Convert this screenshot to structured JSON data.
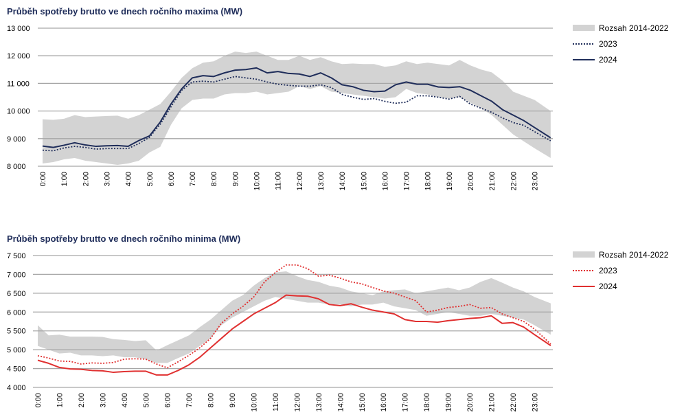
{
  "chart_data": [
    {
      "type": "line",
      "title": "Průběh spotřeby brutto ve dnech ročního maxima (MW)",
      "xlabel": "",
      "ylabel": "",
      "ylim": [
        8000,
        13000
      ],
      "yticks": [
        8000,
        9000,
        10000,
        11000,
        12000,
        13000
      ],
      "ytick_labels": [
        "8 000",
        "9 000",
        "10 000",
        "11 000",
        "12 000",
        "13 000"
      ],
      "xtick_labels": [
        "0:00",
        "1:00",
        "2:00",
        "3:00",
        "4:00",
        "5:00",
        "6:00",
        "7:00",
        "8:00",
        "9:00",
        "10:00",
        "11:00",
        "12:00",
        "13:00",
        "14:00",
        "15:00",
        "16:00",
        "17:00",
        "18:00",
        "19:00",
        "20:00",
        "21:00",
        "22:00",
        "23:00"
      ],
      "x_hours": [
        0,
        0.5,
        1,
        1.5,
        2,
        2.5,
        3,
        3.5,
        4,
        4.5,
        5,
        5.5,
        6,
        6.5,
        7,
        7.5,
        8,
        8.5,
        9,
        9.5,
        10,
        10.5,
        11,
        11.5,
        12,
        12.5,
        13,
        13.5,
        14,
        14.5,
        15,
        15.5,
        16,
        16.5,
        17,
        17.5,
        18,
        18.5,
        19,
        19.5,
        20,
        20.5,
        21,
        21.5,
        22,
        22.5,
        23,
        23.75
      ],
      "grid": true,
      "legend_position": "right",
      "band": {
        "name": "Rozsah 2014-2022",
        "color": "#d3d3d3",
        "upper": [
          9700,
          9680,
          9720,
          9850,
          9780,
          9800,
          9820,
          9830,
          9720,
          9850,
          10050,
          10250,
          10700,
          11200,
          11550,
          11750,
          11800,
          12000,
          12150,
          12100,
          12150,
          12000,
          11850,
          11850,
          12000,
          11850,
          11950,
          11800,
          11700,
          11720,
          11700,
          11700,
          11600,
          11650,
          11800,
          11700,
          11750,
          11700,
          11650,
          11850,
          11650,
          11500,
          11400,
          11100,
          10700,
          10550,
          10400,
          10000
        ],
        "lower": [
          8100,
          8150,
          8250,
          8300,
          8200,
          8150,
          8100,
          8050,
          8100,
          8200,
          8500,
          8700,
          9500,
          10100,
          10400,
          10450,
          10450,
          10600,
          10650,
          10650,
          10700,
          10600,
          10650,
          10700,
          10900,
          10800,
          10900,
          10700,
          10650,
          10600,
          10550,
          10500,
          10450,
          10500,
          10800,
          10650,
          10600,
          10500,
          10450,
          10500,
          10300,
          10100,
          9850,
          9500,
          9150,
          8900,
          8650,
          8300
        ]
      },
      "series": [
        {
          "name": "2023",
          "color": "#1f2d5a",
          "style": "dotted",
          "values": [
            8580,
            8560,
            8660,
            8720,
            8680,
            8620,
            8640,
            8640,
            8640,
            8820,
            9050,
            9520,
            10150,
            10750,
            11050,
            11080,
            11050,
            11150,
            11250,
            11200,
            11150,
            11050,
            10970,
            10930,
            10900,
            10900,
            10950,
            10850,
            10600,
            10500,
            10420,
            10450,
            10350,
            10280,
            10320,
            10550,
            10550,
            10500,
            10430,
            10530,
            10250,
            10100,
            9950,
            9750,
            9580,
            9480,
            9250,
            8920
          ]
        },
        {
          "name": "2024",
          "color": "#1f2d5a",
          "style": "solid",
          "values": [
            8730,
            8680,
            8760,
            8850,
            8770,
            8720,
            8740,
            8750,
            8720,
            8930,
            9100,
            9600,
            10250,
            10800,
            11200,
            11280,
            11250,
            11380,
            11480,
            11500,
            11560,
            11380,
            11430,
            11360,
            11340,
            11250,
            11380,
            11200,
            10950,
            10880,
            10750,
            10700,
            10720,
            10950,
            11050,
            10970,
            10970,
            10870,
            10850,
            10880,
            10750,
            10550,
            10350,
            10050,
            9850,
            9650,
            9400,
            9030
          ]
        }
      ]
    },
    {
      "type": "line",
      "title": "Průběh spotřeby brutto ve dnech ročního minima (MW)",
      "xlabel": "",
      "ylabel": "",
      "ylim": [
        4000,
        7500
      ],
      "yticks": [
        4000,
        4500,
        5000,
        5500,
        6000,
        6500,
        7000,
        7500
      ],
      "ytick_labels": [
        "4 000",
        "4 500",
        "5 000",
        "5 500",
        "6 000",
        "6 500",
        "7 000",
        "7 500"
      ],
      "xtick_labels": [
        "0:00",
        "1:00",
        "2:00",
        "3:00",
        "4:00",
        "5:00",
        "6:00",
        "7:00",
        "8:00",
        "9:00",
        "10:00",
        "11:00",
        "12:00",
        "13:00",
        "14:00",
        "15:00",
        "16:00",
        "17:00",
        "18:00",
        "19:00",
        "20:00",
        "21:00",
        "22:00",
        "23:00"
      ],
      "x_hours": [
        0,
        0.5,
        1,
        1.5,
        2,
        2.5,
        3,
        3.5,
        4,
        4.5,
        5,
        5.5,
        6,
        6.5,
        7,
        7.5,
        8,
        8.5,
        9,
        9.5,
        10,
        10.5,
        11,
        11.5,
        12,
        12.5,
        13,
        13.5,
        14,
        14.5,
        15,
        15.5,
        16,
        16.5,
        17,
        17.5,
        18,
        18.5,
        19,
        19.5,
        20,
        20.5,
        21,
        21.5,
        22,
        22.5,
        23,
        23.75
      ],
      "grid": true,
      "legend_position": "right",
      "band": {
        "name": "Rozsah 2014-2022",
        "color": "#d3d3d3",
        "upper": [
          5650,
          5380,
          5400,
          5350,
          5350,
          5350,
          5340,
          5280,
          5260,
          5230,
          5250,
          4980,
          5120,
          5250,
          5380,
          5600,
          5800,
          6050,
          6300,
          6450,
          6700,
          6900,
          7050,
          7080,
          6950,
          6850,
          6800,
          6700,
          6650,
          6550,
          6500,
          6450,
          6550,
          6580,
          6600,
          6500,
          6550,
          6600,
          6650,
          6580,
          6650,
          6800,
          6900,
          6780,
          6650,
          6550,
          6400,
          6230
        ],
        "lower": [
          5100,
          5000,
          4900,
          4920,
          4850,
          4850,
          4830,
          4850,
          4800,
          4800,
          4750,
          4650,
          4650,
          4780,
          4900,
          5100,
          5300,
          5650,
          5850,
          6000,
          6150,
          6300,
          6400,
          6350,
          6300,
          6250,
          6250,
          6200,
          6200,
          6150,
          6200,
          6200,
          6250,
          6150,
          6100,
          6050,
          5900,
          5950,
          6000,
          5950,
          5900,
          5900,
          5950,
          5900,
          5850,
          5800,
          5650,
          5400
        ]
      },
      "series": [
        {
          "name": "2023",
          "color": "#e03030",
          "style": "dotted",
          "values": [
            4840,
            4780,
            4700,
            4690,
            4620,
            4650,
            4640,
            4660,
            4750,
            4760,
            4750,
            4620,
            4520,
            4680,
            4850,
            5050,
            5300,
            5700,
            5950,
            6150,
            6400,
            6800,
            7050,
            7250,
            7250,
            7150,
            6950,
            6980,
            6900,
            6800,
            6750,
            6650,
            6560,
            6500,
            6400,
            6300,
            6000,
            6050,
            6120,
            6150,
            6200,
            6100,
            6120,
            5950,
            5850,
            5750,
            5550,
            5150
          ]
        },
        {
          "name": "2024",
          "color": "#e03030",
          "style": "solid",
          "values": [
            4720,
            4640,
            4530,
            4490,
            4480,
            4450,
            4440,
            4400,
            4420,
            4430,
            4430,
            4330,
            4330,
            4450,
            4600,
            4800,
            5050,
            5300,
            5550,
            5750,
            5950,
            6100,
            6250,
            6450,
            6430,
            6420,
            6350,
            6200,
            6170,
            6220,
            6130,
            6050,
            6000,
            5950,
            5800,
            5750,
            5750,
            5730,
            5770,
            5800,
            5830,
            5850,
            5900,
            5700,
            5720,
            5600,
            5400,
            5110
          ]
        }
      ]
    }
  ]
}
